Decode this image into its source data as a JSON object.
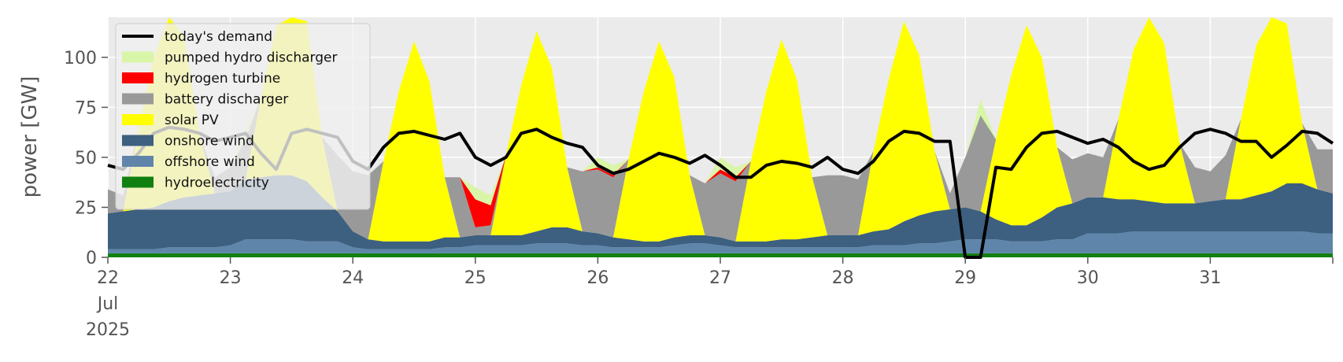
{
  "chart_data": {
    "type": "area",
    "title": "",
    "xlabel": "",
    "ylabel": "power [GW]",
    "ylim": [
      0,
      120
    ],
    "yticks": [
      0,
      25,
      50,
      75,
      100
    ],
    "x_start": "2025-07-22",
    "x_end": "2025-08-01",
    "xtick_labels": [
      {
        "day": 22,
        "lines": [
          "22",
          "Jul",
          "2025"
        ]
      },
      {
        "day": 23,
        "lines": [
          "23"
        ]
      },
      {
        "day": 24,
        "lines": [
          "24"
        ]
      },
      {
        "day": 25,
        "lines": [
          "25"
        ]
      },
      {
        "day": 26,
        "lines": [
          "26"
        ]
      },
      {
        "day": 27,
        "lines": [
          "27"
        ]
      },
      {
        "day": 28,
        "lines": [
          "28"
        ]
      },
      {
        "day": 29,
        "lines": [
          "29"
        ]
      },
      {
        "day": 30,
        "lines": [
          "30"
        ]
      },
      {
        "day": 31,
        "lines": [
          "31"
        ]
      }
    ],
    "grid": true,
    "legend_position": "top-left",
    "legend": [
      {
        "label": "today's demand",
        "color": "#000000",
        "kind": "line"
      },
      {
        "label": "pumped hydro discharger",
        "color": "#d9f5a8",
        "kind": "patch"
      },
      {
        "label": "hydrogen turbine",
        "color": "#ff0000",
        "kind": "patch"
      },
      {
        "label": "battery discharger",
        "color": "#999999",
        "kind": "patch"
      },
      {
        "label": "solar PV",
        "color": "#ffff00",
        "kind": "patch"
      },
      {
        "label": "onshore wind",
        "color": "#3d5f80",
        "kind": "patch"
      },
      {
        "label": "offshore wind",
        "color": "#5f86aa",
        "kind": "patch"
      },
      {
        "label": "hydroelectricity",
        "color": "#118011",
        "kind": "patch"
      }
    ],
    "hours_per_step": 3,
    "series": [
      {
        "name": "hydroelectricity",
        "color": "#118011",
        "values": [
          2,
          2,
          2,
          2,
          2,
          2,
          2,
          2,
          2,
          2,
          2,
          2,
          2,
          2,
          2,
          2,
          2,
          2,
          2,
          2,
          2,
          2,
          2,
          2,
          2,
          2,
          2,
          2,
          2,
          2,
          2,
          2,
          2,
          2,
          2,
          2,
          2,
          2,
          2,
          2,
          2,
          2,
          2,
          2,
          2,
          2,
          2,
          2,
          2,
          2,
          2,
          2,
          2,
          2,
          2,
          2,
          2,
          2,
          2,
          2,
          2,
          2,
          2,
          2,
          2,
          2,
          2,
          2,
          2,
          2,
          2,
          2,
          2,
          2,
          2,
          2,
          2,
          2,
          2,
          2,
          2
        ]
      },
      {
        "name": "offshore wind",
        "color": "#5f86aa",
        "values": [
          2,
          2,
          2,
          2,
          3,
          3,
          3,
          3,
          4,
          7,
          7,
          7,
          7,
          6,
          6,
          6,
          3,
          2,
          2,
          2,
          2,
          2,
          3,
          3,
          4,
          4,
          4,
          4,
          5,
          5,
          5,
          4,
          4,
          3,
          3,
          3,
          3,
          4,
          5,
          5,
          4,
          3,
          3,
          3,
          3,
          3,
          3,
          3,
          3,
          3,
          4,
          4,
          4,
          5,
          5,
          6,
          7,
          7,
          7,
          6,
          6,
          6,
          7,
          7,
          10,
          10,
          10,
          11,
          11,
          11,
          11,
          11,
          11,
          11,
          11,
          11,
          11,
          11,
          11,
          10,
          10
        ]
      },
      {
        "name": "onshore wind",
        "color": "#3d5f80",
        "values": [
          18,
          19,
          20,
          21,
          23,
          25,
          26,
          27,
          27,
          30,
          31,
          32,
          32,
          30,
          22,
          15,
          8,
          5,
          4,
          4,
          4,
          4,
          5,
          5,
          5,
          5,
          5,
          5,
          6,
          8,
          8,
          7,
          6,
          5,
          4,
          3,
          3,
          4,
          4,
          4,
          4,
          3,
          3,
          3,
          4,
          4,
          5,
          6,
          6,
          6,
          7,
          8,
          12,
          14,
          16,
          16,
          16,
          14,
          10,
          8,
          8,
          12,
          16,
          18,
          18,
          18,
          17,
          16,
          15,
          14,
          14,
          14,
          15,
          16,
          16,
          18,
          20,
          24,
          24,
          22,
          20
        ]
      },
      {
        "name": "solar PV",
        "color": "#ffff00",
        "values": [
          0,
          0,
          40,
          75,
          100,
          80,
          30,
          0,
          0,
          0,
          40,
          75,
          100,
          80,
          30,
          0,
          0,
          0,
          40,
          75,
          100,
          80,
          30,
          0,
          0,
          0,
          40,
          75,
          100,
          80,
          30,
          0,
          0,
          0,
          40,
          75,
          100,
          80,
          30,
          0,
          0,
          0,
          40,
          75,
          100,
          80,
          30,
          0,
          0,
          0,
          40,
          75,
          100,
          80,
          30,
          0,
          0,
          0,
          40,
          75,
          100,
          80,
          30,
          0,
          0,
          0,
          40,
          75,
          100,
          80,
          30,
          0,
          0,
          0,
          40,
          75,
          100,
          80,
          30,
          0,
          0
        ]
      },
      {
        "name": "battery discharger",
        "color": "#999999",
        "values": [
          12,
          8,
          0,
          0,
          0,
          0,
          0,
          8,
          12,
          20,
          0,
          0,
          0,
          0,
          0,
          28,
          30,
          32,
          0,
          0,
          0,
          0,
          0,
          30,
          4,
          5,
          0,
          0,
          0,
          0,
          0,
          30,
          32,
          30,
          0,
          0,
          0,
          0,
          0,
          26,
          32,
          30,
          0,
          0,
          0,
          0,
          0,
          30,
          30,
          28,
          0,
          0,
          0,
          0,
          0,
          8,
          25,
          48,
          0,
          0,
          0,
          0,
          0,
          22,
          22,
          20,
          0,
          0,
          0,
          0,
          0,
          18,
          15,
          22,
          0,
          0,
          0,
          0,
          0,
          20,
          22
        ]
      },
      {
        "name": "hydrogen turbine",
        "color": "#ff0000",
        "values": [
          0,
          0,
          0,
          0,
          0,
          0,
          0,
          0,
          0,
          0,
          0,
          0,
          0,
          0,
          0,
          0,
          0,
          0,
          0,
          0,
          0,
          0,
          0,
          0,
          14,
          10,
          0,
          0,
          0,
          0,
          0,
          0,
          1,
          1,
          0,
          0,
          0,
          0,
          0,
          0,
          2,
          2,
          0,
          0,
          0,
          0,
          0,
          0,
          0,
          0,
          0,
          0,
          0,
          0,
          0,
          0,
          0,
          0,
          0,
          0,
          0,
          0,
          0,
          0,
          0,
          0,
          0,
          0,
          0,
          0,
          0,
          0,
          0,
          0,
          0,
          0,
          0,
          0,
          0,
          0,
          0
        ]
      },
      {
        "name": "pumped hydro discharger",
        "color": "#d9f5a8",
        "values": [
          0,
          0,
          0,
          0,
          0,
          0,
          0,
          0,
          0,
          6,
          0,
          0,
          0,
          0,
          0,
          0,
          0,
          0,
          0,
          0,
          0,
          0,
          0,
          0,
          6,
          5,
          0,
          0,
          0,
          0,
          0,
          0,
          5,
          5,
          0,
          0,
          0,
          0,
          0,
          0,
          6,
          5,
          0,
          0,
          0,
          0,
          0,
          0,
          0,
          0,
          0,
          0,
          0,
          0,
          0,
          0,
          0,
          8,
          0,
          0,
          0,
          0,
          0,
          0,
          0,
          0,
          0,
          0,
          0,
          0,
          0,
          0,
          0,
          0,
          0,
          0,
          0,
          0,
          0,
          0,
          0
        ]
      },
      {
        "name": "today's demand",
        "color": "#000000",
        "kind": "line",
        "values": [
          46,
          44,
          52,
          62,
          65,
          64,
          62,
          58,
          60,
          62,
          52,
          44,
          62,
          64,
          62,
          60,
          48,
          44,
          55,
          62,
          63,
          61,
          59,
          62,
          50,
          46,
          50,
          62,
          64,
          60,
          57,
          55,
          46,
          42,
          44,
          48,
          52,
          50,
          47,
          51,
          46,
          40,
          40,
          46,
          48,
          47,
          45,
          50,
          44,
          42,
          48,
          58,
          63,
          62,
          58,
          58,
          0,
          0,
          45,
          44,
          55,
          62,
          63,
          60,
          57,
          59,
          55,
          48,
          44,
          46,
          55,
          62,
          64,
          62,
          58,
          58,
          50,
          56,
          63,
          62,
          57
        ]
      }
    ]
  }
}
